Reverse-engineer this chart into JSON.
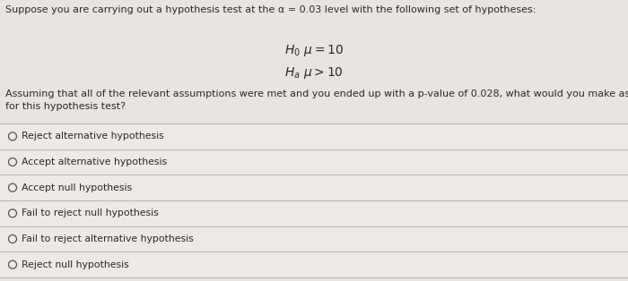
{
  "background_color": "#e8e4e0",
  "options_bg_color": "#ece9e6",
  "title_line": "Suppose you are carrying out a hypothesis test at the α = 0.03 level with the following set of hypotheses:",
  "body_text": "Assuming that all of the relevant assumptions were met and you ended up with a p-value of 0.028, what would you make as your decision\nfor this hypothesis test?",
  "options": [
    "Reject alternative hypothesis",
    "Accept alternative hypothesis",
    "Accept null hypothesis",
    "Fail to reject null hypothesis",
    "Fail to reject alternative hypothesis",
    "Reject null hypothesis"
  ],
  "text_color": "#2a2a2a",
  "option_text_color": "#2a2a2a",
  "line_color": "#b8b4b0",
  "font_size_title": 8.0,
  "font_size_hyp": 10.0,
  "font_size_body": 8.0,
  "font_size_option": 7.8,
  "circle_color": "#555555"
}
